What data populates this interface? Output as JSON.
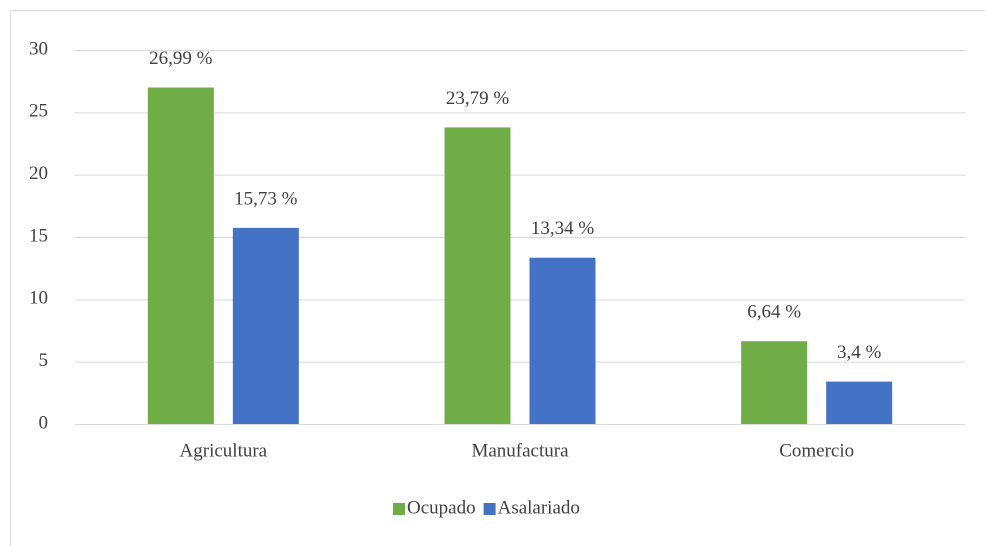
{
  "chart_data": {
    "type": "bar",
    "categories": [
      "Agricultura",
      "Manufactura",
      "Comercio"
    ],
    "series": [
      {
        "name": "Ocupado",
        "color": "#70ad47",
        "values": [
          26.99,
          23.79,
          6.64
        ],
        "value_labels": [
          "26,99 %",
          "23,79 %",
          "6,64 %"
        ]
      },
      {
        "name": "Asalariado",
        "color": "#4472c4",
        "values": [
          15.73,
          13.34,
          3.4
        ],
        "value_labels": [
          "15,73 %",
          "13,34 %",
          "3,4 %"
        ]
      }
    ],
    "ylim": [
      0,
      30
    ],
    "yticks": [
      0,
      5,
      10,
      15,
      20,
      25,
      30
    ],
    "grid": true,
    "legend": "bottom"
  }
}
